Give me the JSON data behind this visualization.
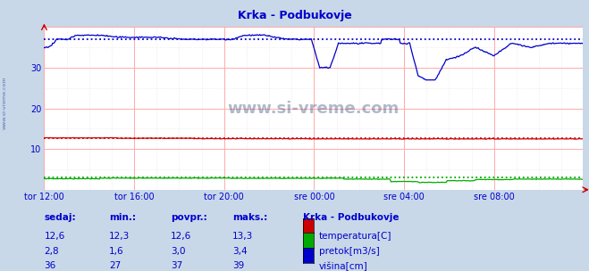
{
  "title": "Krka - Podbukovje",
  "bg_color": "#c8d8e8",
  "plot_bg_color": "#ffffff",
  "grid_color_major": "#ffaaaa",
  "grid_color_minor": "#dddddd",
  "text_color": "#0000cc",
  "x_tick_labels": [
    "tor 12:00",
    "tor 16:00",
    "tor 20:00",
    "sre 00:00",
    "sre 04:00",
    "sre 08:00"
  ],
  "x_tick_positions": [
    0,
    96,
    192,
    288,
    384,
    480
  ],
  "ylim": [
    0,
    40
  ],
  "yticks": [
    10,
    20,
    30
  ],
  "total_points": 576,
  "temp_avg": 12.6,
  "flow_avg": 3.0,
  "height_avg": 37,
  "temp_color": "#cc0000",
  "flow_color": "#00aa00",
  "height_color": "#0000cc",
  "legend_title": "Krka - Podbukovje",
  "legend_labels": [
    "temperatura[C]",
    "pretok[m3/s]",
    "višina[cm]"
  ],
  "legend_colors": [
    "#cc0000",
    "#00aa00",
    "#0000cc"
  ],
  "table_headers": [
    "sedaj:",
    "min.:",
    "povpr.:",
    "maks.:"
  ],
  "table_values": [
    [
      "12,6",
      "12,3",
      "12,6",
      "13,3"
    ],
    [
      "2,8",
      "1,6",
      "3,0",
      "3,4"
    ],
    [
      "36",
      "27",
      "37",
      "39"
    ]
  ],
  "watermark": "www.si-vreme.com",
  "side_label": "www.si-vreme.com"
}
